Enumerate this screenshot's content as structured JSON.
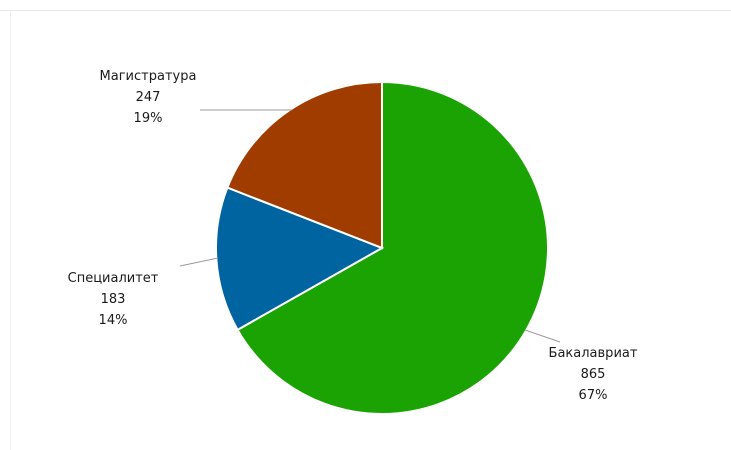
{
  "chart_data": {
    "type": "pie",
    "slices": [
      {
        "label": "Бакалавриат",
        "value": 865,
        "percent": "67%",
        "color": "#1aa302"
      },
      {
        "label": "Специалитет",
        "value": 183,
        "percent": "14%",
        "color": "#0064a0"
      },
      {
        "label": "Магистратура",
        "value": 247,
        "percent": "19%",
        "color": "#a03c00"
      }
    ],
    "start_angle_deg": 0,
    "direction": "clockwise",
    "legend": "none",
    "label_style": "outside with leader lines"
  }
}
